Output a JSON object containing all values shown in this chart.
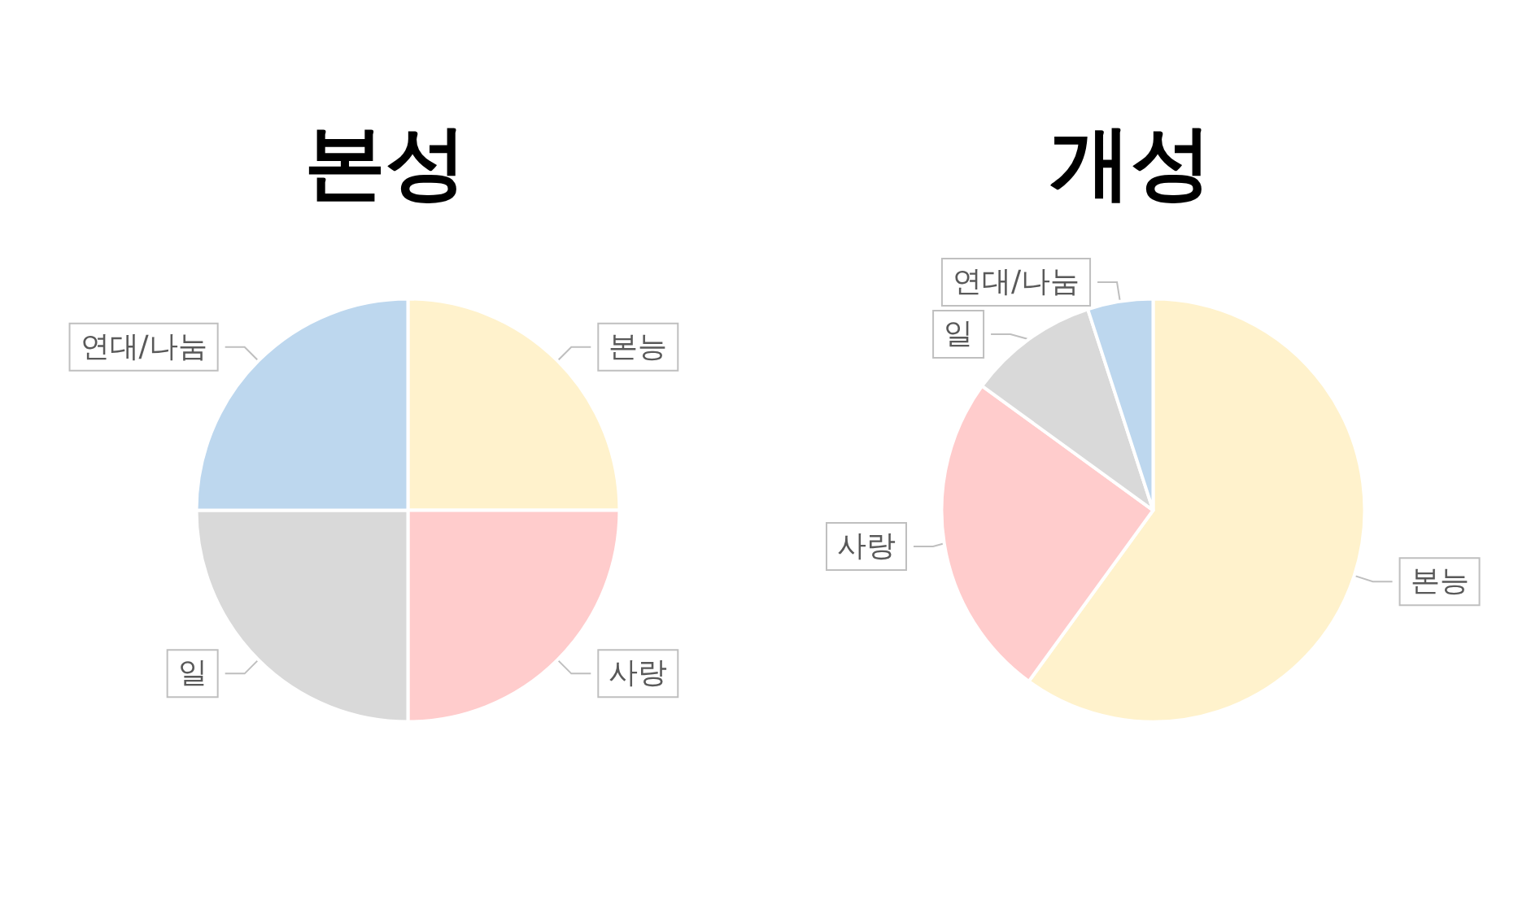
{
  "chart_data": [
    {
      "type": "pie",
      "title": "본성",
      "categories": [
        "본능",
        "사랑",
        "일",
        "연대/나눔"
      ],
      "values": [
        25,
        25,
        25,
        25
      ],
      "colors": [
        "#fff2cc",
        "#ffcccc",
        "#d9d9d9",
        "#bdd7ee"
      ]
    },
    {
      "type": "pie",
      "title": "개성",
      "categories": [
        "본능",
        "사랑",
        "일",
        "연대/나눔"
      ],
      "values": [
        60,
        25,
        10,
        5
      ],
      "colors": [
        "#fff2cc",
        "#ffcccc",
        "#d9d9d9",
        "#bdd7ee"
      ]
    }
  ]
}
